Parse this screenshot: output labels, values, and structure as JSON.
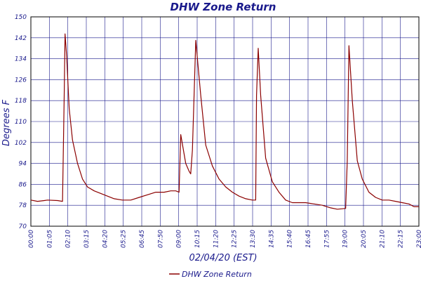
{
  "chart_data": {
    "type": "line",
    "title": "DHW Zone Return",
    "xlabel": "02/04/20 (EST)",
    "ylabel": "Degrees F",
    "ylim": [
      70,
      150
    ],
    "y_ticks": [
      70,
      78,
      86,
      94,
      102,
      110,
      118,
      126,
      134,
      142,
      150
    ],
    "x_ticks": [
      "00:00",
      "01:05",
      "02:10",
      "03:15",
      "04:20",
      "05:25",
      "06:45",
      "07:50",
      "09:00",
      "10:15",
      "11:20",
      "12:25",
      "13:30",
      "14:35",
      "15:40",
      "16:45",
      "17:55",
      "19:00",
      "20:05",
      "21:10",
      "22:15",
      "23:00"
    ],
    "grid": true,
    "legend_position": "bottom",
    "series": [
      {
        "name": "DHW Zone Return",
        "color": "#8b0000",
        "x": [
          0.0,
          0.4,
          0.8,
          1.0,
          1.6,
          1.9,
          2.0,
          2.05,
          2.15,
          2.3,
          2.5,
          2.8,
          3.1,
          3.4,
          3.8,
          4.2,
          4.6,
          5.0,
          5.5,
          6.0,
          6.5,
          7.0,
          7.5,
          8.0,
          8.4,
          8.7,
          8.9,
          9.0,
          9.3,
          9.5,
          9.6,
          9.7,
          9.9,
          10.2,
          10.5,
          10.9,
          11.3,
          11.7,
          12.1,
          12.5,
          12.9,
          13.3,
          13.5,
          13.55,
          13.65,
          13.8,
          14.1,
          14.5,
          14.9,
          15.3,
          15.7,
          16.1,
          16.5,
          17.0,
          17.5,
          18.0,
          18.4,
          18.9,
          19.0,
          19.1,
          19.3,
          19.6,
          19.9,
          20.3,
          20.7,
          21.1,
          21.5,
          21.9,
          22.3,
          22.7,
          23.0,
          23.3
        ],
        "y": [
          80,
          79.5,
          79.8,
          80,
          79.8,
          79.5,
          120,
          143.5,
          135,
          115,
          103,
          94,
          88,
          85,
          83.5,
          82.5,
          81.5,
          80.5,
          80,
          80,
          81,
          82,
          83,
          83,
          83.5,
          83.5,
          83,
          105,
          94,
          91,
          90,
          99,
          141,
          120,
          101,
          93,
          88,
          85,
          83,
          81.5,
          80.5,
          80,
          80,
          120,
          138,
          120,
          96,
          87,
          83,
          80,
          79,
          79,
          79,
          78.5,
          78,
          77,
          76.5,
          76.8,
          95,
          139,
          118,
          95,
          88,
          83,
          81,
          80,
          80,
          79.5,
          79,
          78.5,
          77.5,
          77.5
        ]
      }
    ]
  }
}
